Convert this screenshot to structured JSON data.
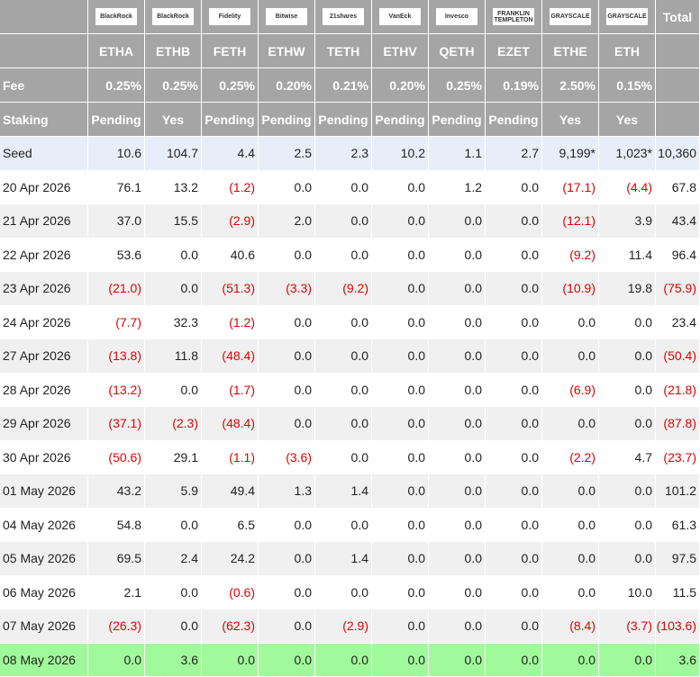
{
  "header": {
    "logos": [
      "BlackRock",
      "BlackRock",
      "Fidelity",
      "Bitwise",
      "21shares",
      "VanEck",
      "Invesco",
      "FRANKLIN TEMPLETON",
      "GRAYSCALE",
      "GRAYSCALE"
    ],
    "total": "Total"
  },
  "tickers": [
    "ETHA",
    "ETHB",
    "FETH",
    "ETHW",
    "TETH",
    "ETHV",
    "QETH",
    "EZET",
    "ETHE",
    "ETH"
  ],
  "fee": {
    "label": "Fee",
    "values": [
      "0.25%",
      "0.25%",
      "0.25%",
      "0.20%",
      "0.21%",
      "0.20%",
      "0.25%",
      "0.19%",
      "2.50%",
      "0.15%"
    ]
  },
  "staking": {
    "label": "Staking",
    "values": [
      "Pending",
      "Yes",
      "Pending",
      "Pending",
      "Pending",
      "Pending",
      "Pending",
      "Pending",
      "Yes",
      "Yes"
    ]
  },
  "rows": [
    {
      "date": "Seed",
      "values": [
        "10.6",
        "104.7",
        "4.4",
        "2.5",
        "2.3",
        "10.2",
        "1.1",
        "2.7",
        "9,199*",
        "1,023*",
        "10,360"
      ]
    },
    {
      "date": "20 Apr 2026",
      "values": [
        "76.1",
        "13.2",
        "(1.2)",
        "0.0",
        "0.0",
        "0.0",
        "1.2",
        "0.0",
        "(17.1)",
        "(4.4)",
        "67.8"
      ]
    },
    {
      "date": "21 Apr 2026",
      "values": [
        "37.0",
        "15.5",
        "(2.9)",
        "2.0",
        "0.0",
        "0.0",
        "0.0",
        "0.0",
        "(12.1)",
        "3.9",
        "43.4"
      ]
    },
    {
      "date": "22 Apr 2026",
      "values": [
        "53.6",
        "0.0",
        "40.6",
        "0.0",
        "0.0",
        "0.0",
        "0.0",
        "0.0",
        "(9.2)",
        "11.4",
        "96.4"
      ]
    },
    {
      "date": "23 Apr 2026",
      "values": [
        "(21.0)",
        "0.0",
        "(51.3)",
        "(3.3)",
        "(9.2)",
        "0.0",
        "0.0",
        "0.0",
        "(10.9)",
        "19.8",
        "(75.9)"
      ]
    },
    {
      "date": "24 Apr 2026",
      "values": [
        "(7.7)",
        "32.3",
        "(1.2)",
        "0.0",
        "0.0",
        "0.0",
        "0.0",
        "0.0",
        "0.0",
        "0.0",
        "23.4"
      ]
    },
    {
      "date": "27 Apr 2026",
      "values": [
        "(13.8)",
        "11.8",
        "(48.4)",
        "0.0",
        "0.0",
        "0.0",
        "0.0",
        "0.0",
        "0.0",
        "0.0",
        "(50.4)"
      ]
    },
    {
      "date": "28 Apr 2026",
      "values": [
        "(13.2)",
        "0.0",
        "(1.7)",
        "0.0",
        "0.0",
        "0.0",
        "0.0",
        "0.0",
        "(6.9)",
        "0.0",
        "(21.8)"
      ]
    },
    {
      "date": "29 Apr 2026",
      "values": [
        "(37.1)",
        "(2.3)",
        "(48.4)",
        "0.0",
        "0.0",
        "0.0",
        "0.0",
        "0.0",
        "0.0",
        "0.0",
        "(87.8)"
      ]
    },
    {
      "date": "30 Apr 2026",
      "values": [
        "(50.6)",
        "29.1",
        "(1.1)",
        "(3.6)",
        "0.0",
        "0.0",
        "0.0",
        "0.0",
        "(2.2)",
        "4.7",
        "(23.7)"
      ]
    },
    {
      "date": "01 May 2026",
      "values": [
        "43.2",
        "5.9",
        "49.4",
        "1.3",
        "1.4",
        "0.0",
        "0.0",
        "0.0",
        "0.0",
        "0.0",
        "101.2"
      ]
    },
    {
      "date": "04 May 2026",
      "values": [
        "54.8",
        "0.0",
        "6.5",
        "0.0",
        "0.0",
        "0.0",
        "0.0",
        "0.0",
        "0.0",
        "0.0",
        "61.3"
      ]
    },
    {
      "date": "05 May 2026",
      "values": [
        "69.5",
        "2.4",
        "24.2",
        "0.0",
        "1.4",
        "0.0",
        "0.0",
        "0.0",
        "0.0",
        "0.0",
        "97.5"
      ]
    },
    {
      "date": "06 May 2026",
      "values": [
        "2.1",
        "0.0",
        "(0.6)",
        "0.0",
        "0.0",
        "0.0",
        "0.0",
        "0.0",
        "0.0",
        "10.0",
        "11.5"
      ]
    },
    {
      "date": "07 May 2026",
      "values": [
        "(26.3)",
        "0.0",
        "(62.3)",
        "0.0",
        "(2.9)",
        "0.0",
        "0.0",
        "0.0",
        "(8.4)",
        "(3.7)",
        "(103.6)"
      ]
    },
    {
      "date": "08 May 2026",
      "values": [
        "0.0",
        "3.6",
        "0.0",
        "0.0",
        "0.0",
        "0.0",
        "0.0",
        "0.0",
        "0.0",
        "0.0",
        "3.6"
      ]
    }
  ]
}
